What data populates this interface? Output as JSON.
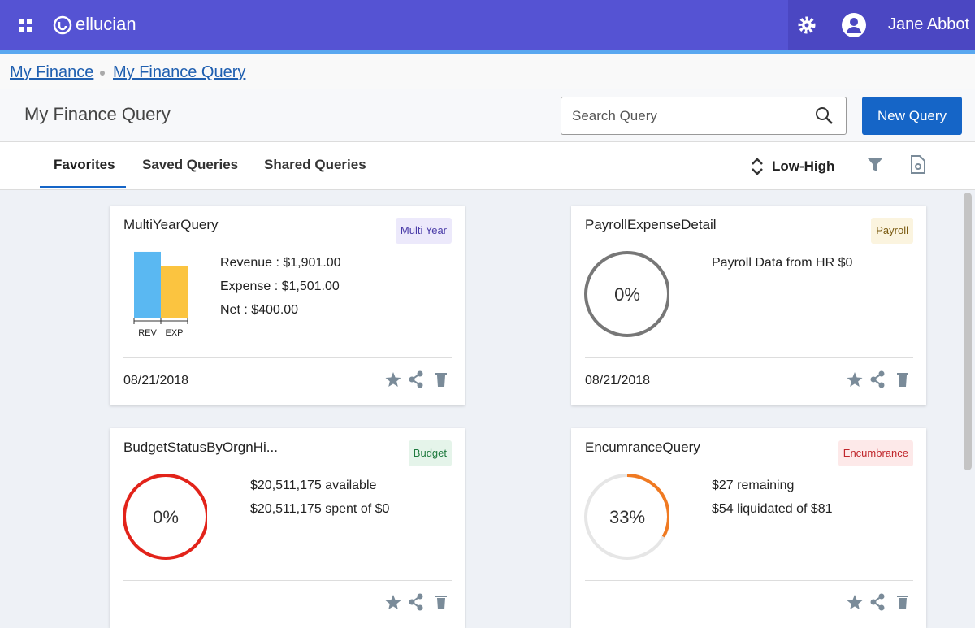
{
  "header": {
    "brand": "ellucian",
    "user": "Jane Abbot"
  },
  "breadcrumb": [
    "My Finance",
    "My Finance Query"
  ],
  "page": {
    "title": "My Finance Query",
    "search_placeholder": "Search Query",
    "new_button": "New Query"
  },
  "tabs": [
    "Favorites",
    "Saved Queries",
    "Shared Queries"
  ],
  "sort": "Low-High",
  "cards": [
    {
      "title": "MultiYearQuery",
      "tag": "Multi Year",
      "lines": [
        "Revenue : $1,901.00",
        "Expense : $1,501.00",
        "Net : $400.00"
      ],
      "bars": [
        {
          "label": "REV",
          "value": 1901
        },
        {
          "label": "EXP",
          "value": 1501
        }
      ],
      "date": "08/21/2018"
    },
    {
      "title": "PayrollExpenseDetail",
      "tag": "Payroll",
      "lines": [
        "Payroll Data from HR $0"
      ],
      "progress": {
        "value": 0,
        "label": "0%"
      },
      "date": "08/21/2018"
    },
    {
      "title": "BudgetStatusByOrgnHi...",
      "tag": "Budget",
      "lines": [
        "$20,511,175 available",
        "$20,511,175 spent of $0"
      ],
      "progress": {
        "value": 0,
        "label": "0%"
      }
    },
    {
      "title": "EncumranceQuery",
      "tag": "Encumbrance",
      "lines": [
        "$27 remaining",
        "$54 liquidated of $81"
      ],
      "progress": {
        "value": 33,
        "label": "33%"
      }
    }
  ]
}
